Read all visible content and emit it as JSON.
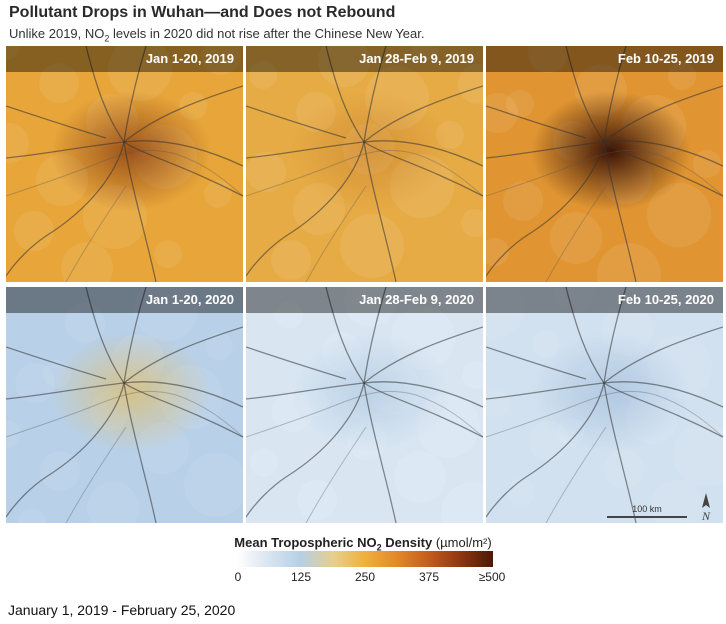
{
  "header": {
    "title": "Pollutant Drops in Wuhan—and Does not Rebound",
    "subtitle_pre": "Unlike 2019, NO",
    "subtitle_sub": "2",
    "subtitle_post": " levels in 2020 did not rise after the Chinese New Year."
  },
  "panels": [
    {
      "label": "Jan 1-20, 2019",
      "base_color": "#e7a53a",
      "hotspot_color": "#7a2e0c",
      "hotspot_intensity": 0.7
    },
    {
      "label": "Jan 28-Feb 9, 2019",
      "base_color": "#e6ab45",
      "hotspot_color": "#b5651d",
      "hotspot_intensity": 0.35
    },
    {
      "label": "Feb 10-25, 2019",
      "base_color": "#e09532",
      "hotspot_color": "#3c1406",
      "hotspot_intensity": 1.0
    },
    {
      "label": "Jan 1-20, 2020",
      "base_color": "#b8d0e8",
      "hotspot_color": "#e8b84a",
      "hotspot_intensity": 0.6
    },
    {
      "label": "Jan 28-Feb 9, 2020",
      "base_color": "#d9e6f2",
      "hotspot_color": "#8fb3d6",
      "hotspot_intensity": 0.4
    },
    {
      "label": "Feb 10-25, 2020",
      "base_color": "#d2e1f0",
      "hotspot_color": "#86aad0",
      "hotspot_intensity": 0.45
    }
  ],
  "scale": {
    "label": "100 km"
  },
  "north_label": "N",
  "legend": {
    "title_pre": "Mean Tropospheric NO",
    "title_sub": "2",
    "title_post": " Density ",
    "unit": "(µmol/m²)",
    "ticks": [
      "0",
      "125",
      "250",
      "375",
      "≥500"
    ]
  },
  "footer": "January 1, 2019 - February 25, 2020"
}
